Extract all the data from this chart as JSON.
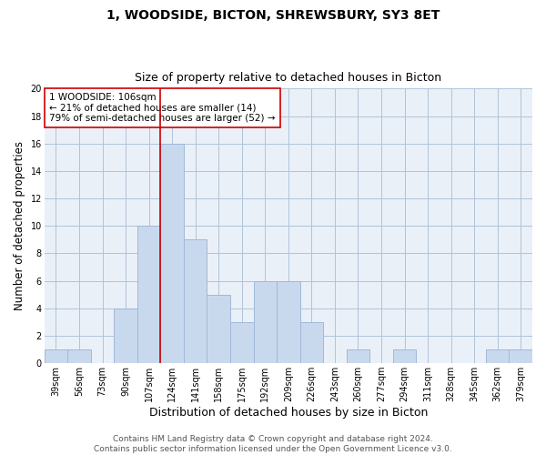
{
  "title": "1, WOODSIDE, BICTON, SHREWSBURY, SY3 8ET",
  "subtitle": "Size of property relative to detached houses in Bicton",
  "xlabel": "Distribution of detached houses by size in Bicton",
  "ylabel": "Number of detached properties",
  "bin_labels": [
    "39sqm",
    "56sqm",
    "73sqm",
    "90sqm",
    "107sqm",
    "124sqm",
    "141sqm",
    "158sqm",
    "175sqm",
    "192sqm",
    "209sqm",
    "226sqm",
    "243sqm",
    "260sqm",
    "277sqm",
    "294sqm",
    "311sqm",
    "328sqm",
    "345sqm",
    "362sqm",
    "379sqm"
  ],
  "bar_values": [
    1,
    1,
    0,
    4,
    10,
    16,
    9,
    5,
    3,
    6,
    6,
    3,
    0,
    1,
    0,
    1,
    0,
    0,
    0,
    1,
    1
  ],
  "bar_color": "#c9d9ed",
  "bar_edge_color": "#a0b8d8",
  "vline_x": 4.5,
  "vline_color": "#cc0000",
  "annotation_text": "1 WOODSIDE: 106sqm\n← 21% of detached houses are smaller (14)\n79% of semi-detached houses are larger (52) →",
  "annotation_box_color": "white",
  "annotation_box_edge": "#cc0000",
  "ylim": [
    0,
    20
  ],
  "yticks": [
    0,
    2,
    4,
    6,
    8,
    10,
    12,
    14,
    16,
    18,
    20
  ],
  "grid_color": "#b0c4d8",
  "background_color": "#eaf0f8",
  "footer_line1": "Contains HM Land Registry data © Crown copyright and database right 2024.",
  "footer_line2": "Contains public sector information licensed under the Open Government Licence v3.0.",
  "title_fontsize": 10,
  "subtitle_fontsize": 9,
  "xlabel_fontsize": 9,
  "ylabel_fontsize": 8.5,
  "tick_fontsize": 7,
  "annotation_fontsize": 7.5,
  "footer_fontsize": 6.5
}
